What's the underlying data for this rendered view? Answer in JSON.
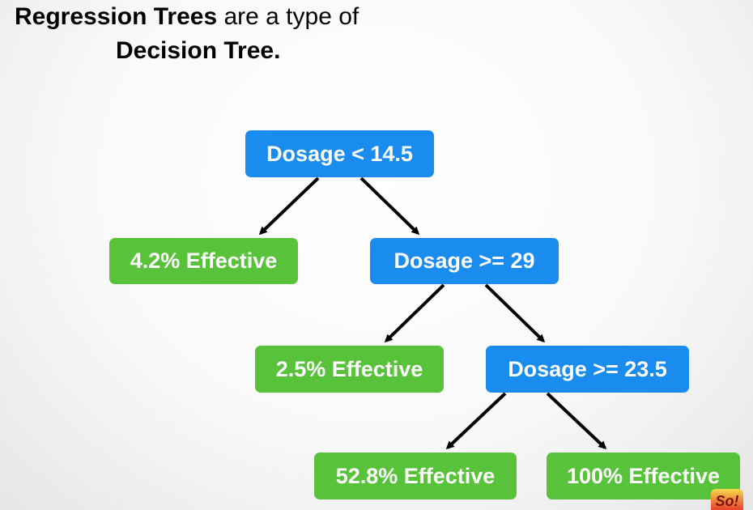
{
  "title": {
    "line1_bold": "Regression Trees",
    "line1_rest": " are a type of",
    "line2_bold": "Decision Tree."
  },
  "tree": {
    "root": {
      "label": "Dosage < 14.5",
      "color": "#1a8cf0"
    },
    "left_leaf": {
      "label": "4.2% Effective",
      "color": "#58c33a"
    },
    "right_node": {
      "label": "Dosage >= 29",
      "color": "#1a8cf0"
    },
    "mid_leaf": {
      "label": "2.5% Effective",
      "color": "#58c33a"
    },
    "lower_node": {
      "label": "Dosage >= 23.5",
      "color": "#1a8cf0"
    },
    "bottom_left_leaf": {
      "label": "52.8% Effective",
      "color": "#58c33a"
    },
    "bottom_right_leaf": {
      "label": "100% Effective",
      "color": "#58c33a"
    }
  },
  "edges": [
    {
      "from": "root",
      "to": "left_leaf"
    },
    {
      "from": "root",
      "to": "right_node"
    },
    {
      "from": "right_node",
      "to": "mid_leaf"
    },
    {
      "from": "right_node",
      "to": "lower_node"
    },
    {
      "from": "lower_node",
      "to": "bottom_left_leaf"
    },
    {
      "from": "lower_node",
      "to": "bottom_right_leaf"
    }
  ],
  "watermark": {
    "text": "So!"
  }
}
